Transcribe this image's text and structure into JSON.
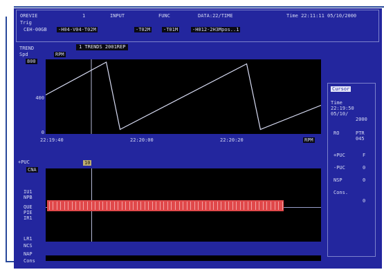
{
  "header": {
    "row1": [
      "OREVIE",
      "1",
      "INPUT",
      "FUNC",
      "DATA:22/TIME",
      "Time 22:11:11 05/10/2000"
    ],
    "row2_label": "Trig",
    "row3_items": [
      "CEH-00GB",
      "-H04-V04-T02M",
      "-T02M",
      "-T01M",
      "-H012-2H3Mpos..1"
    ]
  },
  "section": {
    "name": "TREND",
    "tab_title": "1 TRENDS 2001REP",
    "sub_label": "Spd",
    "sub_chip": "RPM"
  },
  "trend_chart": {
    "y_top_chip": "800",
    "y_labels": [
      "800",
      "400",
      "0"
    ],
    "x_labels": [
      "22:19:40",
      "22:20:00",
      "22:20:20"
    ],
    "unit_chip": "RPM"
  },
  "chart_data": {
    "type": "line",
    "title": "",
    "xlabel": "",
    "ylabel": "",
    "ylim": [
      0,
      800
    ],
    "xlim": [
      0,
      100
    ],
    "x_tick_labels": [
      "22:19:40",
      "22:20:00",
      "22:20:20"
    ],
    "series": [
      {
        "x": [
          0,
          22,
          27,
          73,
          78,
          100
        ],
        "y": [
          420,
          800,
          20,
          780,
          20,
          300
        ]
      }
    ]
  },
  "lower_panel": {
    "label": "+PUC",
    "left_chip": "CNA",
    "cursor_chip": "10",
    "left_labels": [
      "IU1",
      "NPB",
      "QUE",
      "PIE",
      "IR1",
      "LR1",
      "NCS",
      "NAP",
      "Cons"
    ],
    "bar_count": 62,
    "bar_fraction": 0.86
  },
  "side_panel": {
    "chip": "Cursor",
    "lines": [
      "Time",
      "22:19:50",
      "05/10/",
      "2000"
    ],
    "rows": [
      {
        "label": "RO",
        "value": "PTR"
      },
      {
        "label": "",
        "value": "045"
      },
      {
        "label": "+PUC",
        "value": "F"
      },
      {
        "label": "-PUC",
        "value": "0"
      },
      {
        "label": "NSP",
        "value": "0"
      },
      {
        "label": "Cons.",
        "value": "0"
      }
    ]
  },
  "colors": {
    "screen": "#23269e",
    "plot": "#000000",
    "trace": "#d8dcf4",
    "bars": "#e0484a",
    "frame": "#27489a"
  }
}
